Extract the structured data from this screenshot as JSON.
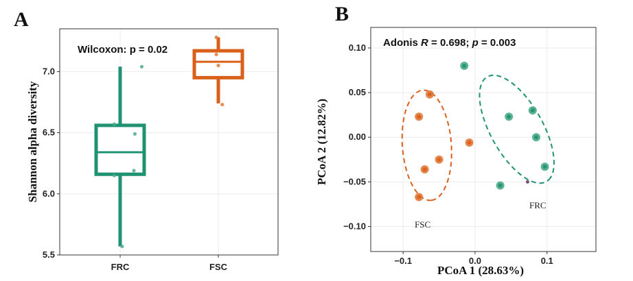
{
  "colors": {
    "FRC": "#1e9272",
    "FSC": "#d9601a",
    "FRC_point": "#4cab8a",
    "FSC_point": "#e07a3a",
    "outlier": "#7a4f7a"
  },
  "chart_data": [
    {
      "panel": "A",
      "type": "box",
      "title": "",
      "annotation": "Wilcoxon: p = 0.02",
      "xlabel": "",
      "ylabel": "Shannon alpha diversity",
      "categories": [
        "FRC",
        "FSC"
      ],
      "ylim": [
        5.5,
        7.35
      ],
      "yticks": [
        "5.5",
        "6.0",
        "6.5",
        "7.0"
      ],
      "boxes": [
        {
          "name": "FRC",
          "whisker_low": 5.57,
          "q1": 6.16,
          "median": 6.34,
          "q3": 6.56,
          "whisker_high": 7.04
        },
        {
          "name": "FSC",
          "whisker_low": 6.74,
          "q1": 6.95,
          "median": 7.08,
          "q3": 7.17,
          "whisker_high": 7.28
        }
      ],
      "points": [
        {
          "group": "FRC",
          "dx": -0.06,
          "y": 6.57
        },
        {
          "group": "FRC",
          "dx": -0.06,
          "y": 6.15
        },
        {
          "group": "FRC",
          "dx": 0.15,
          "y": 6.49
        },
        {
          "group": "FRC",
          "dx": 0.14,
          "y": 6.19
        },
        {
          "group": "FRC",
          "dx": 0.02,
          "y": 5.57
        },
        {
          "group": "FRC",
          "dx": 0.22,
          "y": 7.04
        },
        {
          "group": "FSC",
          "dx": -0.02,
          "y": 7.28
        },
        {
          "group": "FSC",
          "dx": -0.02,
          "y": 7.14
        },
        {
          "group": "FSC",
          "dx": 0.0,
          "y": 7.05
        },
        {
          "group": "FSC",
          "dx": 0.04,
          "y": 6.73
        }
      ]
    },
    {
      "panel": "B",
      "type": "scatter",
      "title": "",
      "annotation_prefix": "Adonis ",
      "annotation_R": "R",
      "annotation_R_value": " = 0.698; ",
      "annotation_p": "p",
      "annotation_p_value": " = 0.003",
      "xlabel": "PCoA 1 (28.63%)",
      "ylabel": "PCoA 2 (12.82%)",
      "xlim": [
        -0.145,
        0.168
      ],
      "ylim": [
        -0.128,
        0.123
      ],
      "xticks": [
        "−0.1",
        "0.0",
        "0.1"
      ],
      "xtick_values": [
        -0.1,
        0.0,
        0.1
      ],
      "yticks": [
        "0.10",
        "0.05",
        "0.00",
        "−0.05",
        "−0.10"
      ],
      "ytick_values": [
        0.1,
        0.05,
        0.0,
        -0.05,
        -0.1
      ],
      "series": [
        {
          "name": "FRC",
          "label": "FRC",
          "x": [
            -0.015,
            0.047,
            0.08,
            0.085,
            0.097,
            0.035
          ],
          "y": [
            0.08,
            0.023,
            0.03,
            0.0,
            -0.033,
            -0.054
          ]
        },
        {
          "name": "FSC",
          "label": "FSC",
          "x": [
            -0.063,
            -0.078,
            -0.008,
            -0.05,
            -0.07,
            -0.078
          ],
          "y": [
            0.048,
            0.023,
            -0.006,
            -0.025,
            -0.036,
            -0.067
          ]
        }
      ],
      "extra_point": {
        "x": 0.073,
        "y": -0.05
      },
      "ellipses": [
        {
          "name": "FRC",
          "cx": 0.058,
          "cy": 0.009,
          "rx": 0.072,
          "ry": 0.034,
          "angle_deg": -52
        },
        {
          "name": "FSC",
          "cx": -0.067,
          "cy": -0.009,
          "rx": 0.062,
          "ry": 0.034,
          "angle_deg": -84
        }
      ]
    }
  ]
}
